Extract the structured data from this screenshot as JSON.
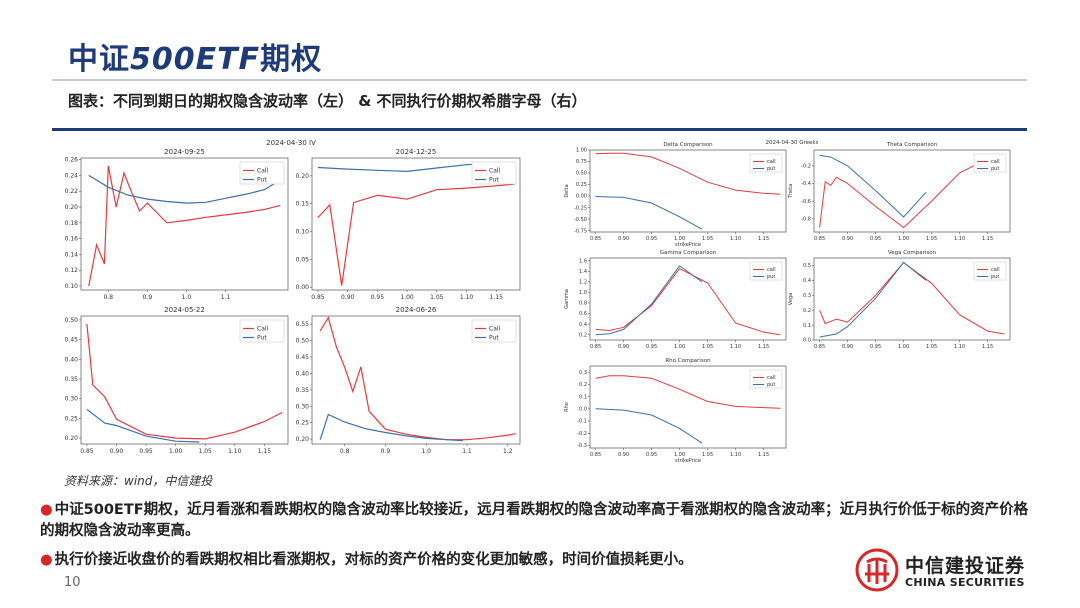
{
  "header": {
    "title_cn1": "中证",
    "title_en": "500ETF",
    "title_cn2": "期权",
    "subtitle": "图表：不同到期日的期权隐含波动率（左） & 不同执行价期权希腊字母（右）"
  },
  "colors": {
    "call": "#e8393f",
    "put": "#3d6fa6",
    "brand": "#1e3a78",
    "accent": "#d62828"
  },
  "chart_data": [
    {
      "type": "line",
      "suptitle": "2024-04-30 IV",
      "title": "2024-09-25",
      "xlim": [
        0.73,
        1.26
      ],
      "ylim": [
        0.095,
        0.262
      ],
      "xticks": [
        0.8,
        0.9,
        1.0,
        1.1
      ],
      "xtick_labels": [
        "0.8",
        "0.9",
        "1.0",
        "1.1"
      ],
      "yticks": [
        0.1,
        0.12,
        0.14,
        0.16,
        0.18,
        0.2,
        0.22,
        0.24,
        0.26
      ],
      "ytick_labels": [
        "0.10",
        "0.12",
        "0.14",
        "0.16",
        "0.18",
        "0.20",
        "0.22",
        "0.24",
        "0.26"
      ],
      "legend": [
        "Call",
        "Put"
      ],
      "series": [
        {
          "name": "Call",
          "color": "call",
          "x": [
            0.75,
            0.77,
            0.79,
            0.8,
            0.82,
            0.84,
            0.86,
            0.88,
            0.9,
            0.95,
            1.0,
            1.05,
            1.1,
            1.15,
            1.2,
            1.24
          ],
          "y": [
            0.1,
            0.152,
            0.128,
            0.252,
            0.2,
            0.243,
            0.218,
            0.195,
            0.205,
            0.18,
            0.183,
            0.187,
            0.19,
            0.193,
            0.197,
            0.202
          ]
        },
        {
          "name": "Put",
          "color": "put",
          "x": [
            0.75,
            0.8,
            0.85,
            0.9,
            0.95,
            1.0,
            1.05,
            1.1,
            1.15,
            1.2,
            1.24
          ],
          "y": [
            0.24,
            0.225,
            0.215,
            0.21,
            0.207,
            0.205,
            0.206,
            0.211,
            0.216,
            0.222,
            0.234
          ]
        }
      ]
    },
    {
      "type": "line",
      "title": "2024-12-25",
      "xlim": [
        0.84,
        1.19
      ],
      "ylim": [
        -0.005,
        0.232
      ],
      "xticks": [
        0.85,
        0.9,
        0.95,
        1.0,
        1.05,
        1.1,
        1.15
      ],
      "xtick_labels": [
        "0.85",
        "0.90",
        "0.95",
        "1.00",
        "1.05",
        "1.10",
        "1.15"
      ],
      "yticks": [
        0.0,
        0.05,
        0.1,
        0.15,
        0.2
      ],
      "ytick_labels": [
        "0.00",
        "0.05",
        "0.10",
        "0.15",
        "0.20"
      ],
      "legend": [
        "Call",
        "Put"
      ],
      "series": [
        {
          "name": "Call",
          "color": "call",
          "x": [
            0.85,
            0.87,
            0.89,
            0.91,
            0.95,
            1.0,
            1.05,
            1.1,
            1.15,
            1.18
          ],
          "y": [
            0.125,
            0.148,
            0.003,
            0.152,
            0.165,
            0.158,
            0.175,
            0.178,
            0.182,
            0.185
          ]
        },
        {
          "name": "Put",
          "color": "put",
          "x": [
            0.85,
            0.9,
            0.95,
            1.0,
            1.05,
            1.1,
            1.14
          ],
          "y": [
            0.215,
            0.212,
            0.21,
            0.208,
            0.214,
            0.22,
            0.222
          ]
        }
      ]
    },
    {
      "type": "line",
      "title": "2024-05-22",
      "xlim": [
        0.84,
        1.19
      ],
      "ylim": [
        0.185,
        0.51
      ],
      "xticks": [
        0.85,
        0.9,
        0.95,
        1.0,
        1.05,
        1.1,
        1.15
      ],
      "xtick_labels": [
        "0.85",
        "0.90",
        "0.95",
        "1.00",
        "1.05",
        "1.10",
        "1.15"
      ],
      "yticks": [
        0.2,
        0.25,
        0.3,
        0.35,
        0.4,
        0.45,
        0.5
      ],
      "ytick_labels": [
        "0.20",
        "0.25",
        "0.30",
        "0.35",
        "0.40",
        "0.45",
        "0.50"
      ],
      "legend": [
        "Call",
        "Put"
      ],
      "series": [
        {
          "name": "Call",
          "color": "call",
          "x": [
            0.85,
            0.86,
            0.88,
            0.9,
            0.95,
            1.0,
            1.05,
            1.1,
            1.15,
            1.18
          ],
          "y": [
            0.49,
            0.335,
            0.305,
            0.248,
            0.21,
            0.2,
            0.198,
            0.215,
            0.242,
            0.265
          ]
        },
        {
          "name": "Put",
          "color": "put",
          "x": [
            0.85,
            0.88,
            0.9,
            0.95,
            1.0,
            1.04
          ],
          "y": [
            0.273,
            0.238,
            0.232,
            0.205,
            0.192,
            0.19
          ]
        }
      ]
    },
    {
      "type": "line",
      "title": "2024-06-26",
      "xlim": [
        0.72,
        1.23
      ],
      "ylim": [
        0.185,
        0.575
      ],
      "xticks": [
        0.8,
        0.9,
        1.0,
        1.1,
        1.2
      ],
      "xtick_labels": [
        "0.8",
        "0.9",
        "1.0",
        "1.1",
        "1.2"
      ],
      "yticks": [
        0.2,
        0.25,
        0.3,
        0.35,
        0.4,
        0.45,
        0.5,
        0.55
      ],
      "ytick_labels": [
        "0.20",
        "0.25",
        "0.30",
        "0.35",
        "0.40",
        "0.45",
        "0.50",
        "0.55"
      ],
      "legend": [
        "Call",
        "Put"
      ],
      "series": [
        {
          "name": "Call",
          "color": "call",
          "x": [
            0.74,
            0.76,
            0.78,
            0.8,
            0.82,
            0.84,
            0.86,
            0.9,
            0.95,
            1.0,
            1.05,
            1.1,
            1.15,
            1.2,
            1.22
          ],
          "y": [
            0.53,
            0.57,
            0.48,
            0.42,
            0.345,
            0.42,
            0.285,
            0.23,
            0.215,
            0.205,
            0.198,
            0.198,
            0.204,
            0.212,
            0.216
          ]
        },
        {
          "name": "Put",
          "color": "put",
          "x": [
            0.74,
            0.76,
            0.8,
            0.85,
            0.9,
            0.95,
            1.0,
            1.05,
            1.09
          ],
          "y": [
            0.198,
            0.275,
            0.252,
            0.232,
            0.22,
            0.21,
            0.202,
            0.198,
            0.195
          ]
        }
      ]
    },
    {
      "type": "line",
      "suptitle": "2024-04-30 Greeks",
      "title": "Delta Comparison",
      "xlabel": "strikePrice",
      "ylabel": "Delta",
      "xlim": [
        0.84,
        1.19
      ],
      "ylim": [
        -0.78,
        1.0
      ],
      "xticks": [
        0.85,
        0.9,
        0.95,
        1.0,
        1.05,
        1.1,
        1.15
      ],
      "xtick_labels": [
        "0.85",
        "0.90",
        "0.95",
        "1.00",
        "1.05",
        "1.10",
        "1.15"
      ],
      "yticks": [
        -0.75,
        -0.5,
        -0.25,
        0.0,
        0.25,
        0.5,
        0.75,
        1.0
      ],
      "ytick_labels": [
        "-0.75",
        "-0.50",
        "-0.25",
        "0.00",
        "0.25",
        "0.50",
        "0.75",
        "1.00"
      ],
      "legend": [
        "call",
        "put"
      ],
      "series": [
        {
          "name": "call",
          "color": "call",
          "x": [
            0.85,
            0.875,
            0.9,
            0.95,
            1.0,
            1.05,
            1.1,
            1.15,
            1.18
          ],
          "y": [
            0.92,
            0.93,
            0.93,
            0.85,
            0.6,
            0.3,
            0.13,
            0.06,
            0.04
          ]
        },
        {
          "name": "put",
          "color": "put",
          "x": [
            0.85,
            0.9,
            0.95,
            1.0,
            1.04
          ],
          "y": [
            -0.01,
            -0.03,
            -0.15,
            -0.45,
            -0.72
          ]
        }
      ]
    },
    {
      "type": "line",
      "title": "Theta Comparison",
      "ylabel": "Theta",
      "xlim": [
        0.84,
        1.19
      ],
      "ylim": [
        -0.95,
        -0.02
      ],
      "xticks": [
        0.85,
        0.9,
        0.95,
        1.0,
        1.05,
        1.1,
        1.15
      ],
      "xtick_labels": [
        "0.85",
        "0.90",
        "0.95",
        "1.00",
        "1.05",
        "1.10",
        "1.15"
      ],
      "yticks": [
        -0.8,
        -0.6,
        -0.4,
        -0.2
      ],
      "ytick_labels": [
        "-0.8",
        "-0.6",
        "-0.4",
        "-0.2"
      ],
      "legend": [
        "call",
        "put"
      ],
      "series": [
        {
          "name": "call",
          "color": "call",
          "x": [
            0.85,
            0.86,
            0.87,
            0.88,
            0.9,
            0.95,
            1.0,
            1.05,
            1.1,
            1.15,
            1.18
          ],
          "y": [
            -0.9,
            -0.38,
            -0.42,
            -0.33,
            -0.4,
            -0.66,
            -0.9,
            -0.6,
            -0.28,
            -0.12,
            -0.08
          ]
        },
        {
          "name": "put",
          "color": "put",
          "x": [
            0.85,
            0.87,
            0.9,
            0.95,
            1.0,
            1.04
          ],
          "y": [
            -0.08,
            -0.1,
            -0.2,
            -0.48,
            -0.78,
            -0.5
          ]
        }
      ]
    },
    {
      "type": "line",
      "title": "Gamma Comparison",
      "ylabel": "Gamma",
      "xlim": [
        0.84,
        1.19
      ],
      "ylim": [
        0.1,
        1.65
      ],
      "xticks": [
        0.85,
        0.9,
        0.95,
        1.0,
        1.05,
        1.1,
        1.15
      ],
      "xtick_labels": [
        "0.85",
        "0.90",
        "0.95",
        "1.00",
        "1.05",
        "1.10",
        "1.15"
      ],
      "yticks": [
        0.2,
        0.4,
        0.6,
        0.8,
        1.0,
        1.2,
        1.4,
        1.6
      ],
      "ytick_labels": [
        "0.2",
        "0.4",
        "0.6",
        "0.8",
        "1.0",
        "1.2",
        "1.4",
        "1.6"
      ],
      "legend": [
        "call",
        "put"
      ],
      "series": [
        {
          "name": "call",
          "color": "call",
          "x": [
            0.85,
            0.875,
            0.9,
            0.95,
            1.0,
            1.05,
            1.1,
            1.15,
            1.18
          ],
          "y": [
            0.3,
            0.28,
            0.34,
            0.75,
            1.45,
            1.18,
            0.42,
            0.25,
            0.2
          ]
        },
        {
          "name": "put",
          "color": "put",
          "x": [
            0.85,
            0.875,
            0.9,
            0.95,
            1.0,
            1.04
          ],
          "y": [
            0.2,
            0.22,
            0.3,
            0.78,
            1.5,
            1.2
          ]
        }
      ]
    },
    {
      "type": "line",
      "title": "Vega Comparison",
      "ylabel": "Vega",
      "xlim": [
        0.84,
        1.19
      ],
      "ylim": [
        0.0,
        0.55
      ],
      "xticks": [
        0.85,
        0.9,
        0.95,
        1.0,
        1.05,
        1.1,
        1.15
      ],
      "xtick_labels": [
        "0.85",
        "0.90",
        "0.95",
        "1.00",
        "1.05",
        "1.10",
        "1.15"
      ],
      "yticks": [
        0.0,
        0.1,
        0.2,
        0.3,
        0.4,
        0.5
      ],
      "ytick_labels": [
        "0.0",
        "0.1",
        "0.2",
        "0.3",
        "0.4",
        "0.5"
      ],
      "legend": [
        "call",
        "put"
      ],
      "series": [
        {
          "name": "call",
          "color": "call",
          "x": [
            0.85,
            0.86,
            0.88,
            0.9,
            0.95,
            1.0,
            1.05,
            1.1,
            1.15,
            1.18
          ],
          "y": [
            0.2,
            0.11,
            0.14,
            0.12,
            0.3,
            0.52,
            0.38,
            0.17,
            0.06,
            0.04
          ]
        },
        {
          "name": "put",
          "color": "put",
          "x": [
            0.85,
            0.88,
            0.9,
            0.95,
            1.0,
            1.04
          ],
          "y": [
            0.02,
            0.04,
            0.09,
            0.28,
            0.52,
            0.4
          ]
        }
      ]
    },
    {
      "type": "line",
      "title": "Rho Comparison",
      "xlabel": "strikePrice",
      "ylabel": "Rho",
      "xlim": [
        0.84,
        1.19
      ],
      "ylim": [
        -0.32,
        0.35
      ],
      "xticks": [
        0.85,
        0.9,
        0.95,
        1.0,
        1.05,
        1.1,
        1.15
      ],
      "xtick_labels": [
        "0.85",
        "0.90",
        "0.95",
        "1.00",
        "1.05",
        "1.10",
        "1.15"
      ],
      "yticks": [
        -0.3,
        -0.2,
        -0.1,
        0.0,
        0.1,
        0.2,
        0.3
      ],
      "ytick_labels": [
        "-0.3",
        "-0.2",
        "-0.1",
        "0.0",
        "0.1",
        "0.2",
        "0.3"
      ],
      "legend": [
        "call",
        "put"
      ],
      "series": [
        {
          "name": "call",
          "color": "call",
          "x": [
            0.85,
            0.875,
            0.9,
            0.95,
            1.0,
            1.05,
            1.1,
            1.15,
            1.18
          ],
          "y": [
            0.25,
            0.27,
            0.27,
            0.25,
            0.16,
            0.06,
            0.02,
            0.01,
            0.005
          ]
        },
        {
          "name": "put",
          "color": "put",
          "x": [
            0.85,
            0.9,
            0.95,
            1.0,
            1.04
          ],
          "y": [
            0.0,
            -0.01,
            -0.05,
            -0.16,
            -0.28
          ]
        }
      ]
    }
  ],
  "source": "资料来源：wind，中信建投",
  "bullets": [
    "中证500ETF期权，近月看涨和看跌期权的隐含波动率比较接近，远月看跌期权的隐含波动率高于看涨期权的隐含波动率；近月执行价低于标的资产价格的期权隐含波动率更高。",
    "执行价接近收盘价的看跌期权相比看涨期权，对标的资产价格的变化更加敏感，时间价值损耗更小。"
  ],
  "page_number": "10",
  "logo": {
    "cn": "中信建投证券",
    "en": "CHINA SECURITIES"
  }
}
